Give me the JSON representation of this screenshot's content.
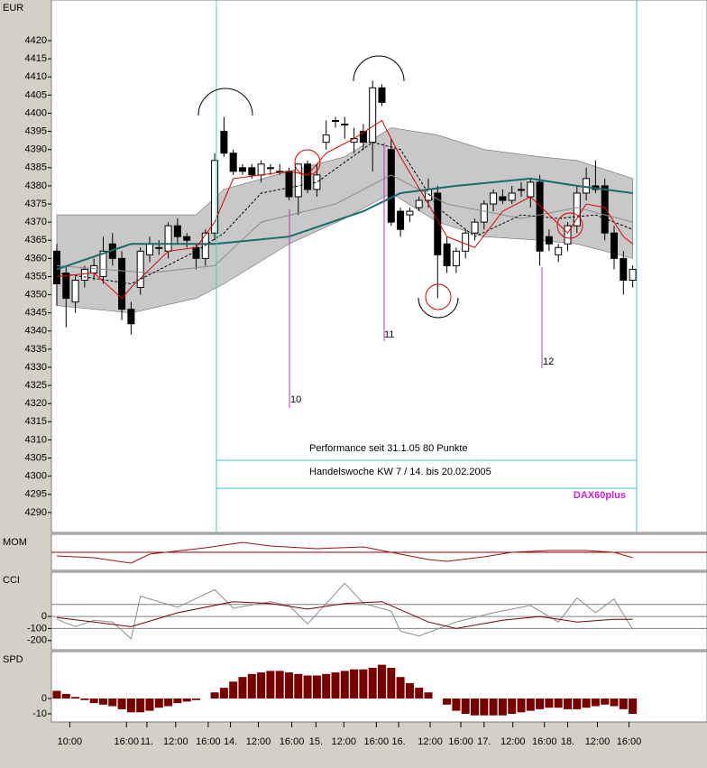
{
  "chart_data": [
    {
      "type": "candlestick",
      "title": "EUR",
      "xlim": [
        -0.58,
        70
      ],
      "ylim": [
        4284.5,
        4431.2
      ],
      "yticks": [
        4290,
        4295,
        4300,
        4305,
        4310,
        4315,
        4320,
        4325,
        4330,
        4335,
        4340,
        4345,
        4350,
        4355,
        4360,
        4365,
        4370,
        4375,
        4380,
        4385,
        4390,
        4395,
        4400,
        4405,
        4410,
        4415,
        4420
      ],
      "open": [
        4362,
        4356,
        4348,
        4354,
        4356,
        4355,
        4364,
        4360,
        4346,
        4352,
        4361,
        4363,
        4362,
        4369,
        4366,
        4363,
        4360,
        4367,
        4395,
        4389,
        4385,
        4385,
        4383,
        4385,
        4384,
        4384,
        4377,
        4386,
        4379,
        4392,
        4398,
        4397,
        4392,
        4395,
        4392,
        4407,
        4390,
        4373,
        4372,
        4374,
        4376,
        4378,
        4364,
        4358,
        4362,
        4367,
        4370,
        4375,
        4377,
        4376,
        4379,
        4377,
        4381,
        4366,
        4361,
        4364,
        4369,
        4378,
        4380,
        4380,
        4367,
        4360,
        4354
      ],
      "high": [
        4364,
        4358,
        4355,
        4358,
        4360,
        4366,
        4367,
        4362,
        4348,
        4363,
        4366,
        4365,
        4370,
        4371,
        4367,
        4364,
        4368,
        4389,
        4399,
        4390,
        4386,
        4386,
        4387,
        4386,
        4386,
        4385,
        4386,
        4387,
        4386,
        4398,
        4399,
        4399,
        4396,
        4397,
        4409,
        4408,
        4393,
        4374,
        4374,
        4377,
        4382,
        4380,
        4366,
        4363,
        4368,
        4371,
        4376,
        4379,
        4379,
        4380,
        4381,
        4382,
        4383,
        4368,
        4364,
        4370,
        4380,
        4385,
        4387,
        4382,
        4369,
        4362,
        4358
      ],
      "low": [
        4347,
        4341,
        4345,
        4352,
        4354,
        4353,
        4358,
        4343,
        4339,
        4350,
        4359,
        4361,
        4360,
        4364,
        4363,
        4357,
        4358,
        4365,
        4388,
        4383,
        4383,
        4382,
        4381,
        4383,
        4383,
        4376,
        4372,
        4378,
        4377,
        4390,
        4396,
        4393,
        4389,
        4390,
        4384,
        4402,
        4369,
        4366,
        4370,
        4373,
        4374,
        4349,
        4356,
        4356,
        4360,
        4365,
        4368,
        4373,
        4375,
        4375,
        4377,
        4374,
        4358,
        4362,
        4359,
        4362,
        4367,
        4376,
        4378,
        4365,
        4357,
        4350,
        4352
      ],
      "close": [
        4353,
        4349,
        4354,
        4357,
        4358,
        4362,
        4360,
        4346,
        4342,
        4362,
        4364,
        4363,
        4369,
        4366,
        4365,
        4360,
        4367,
        4387,
        4389,
        4384,
        4384,
        4383,
        4386,
        4385,
        4384,
        4377,
        4386,
        4379,
        4383,
        4394,
        4398,
        4397,
        4393,
        4392,
        4407,
        4403,
        4370,
        4368,
        4373,
        4376,
        4379,
        4361,
        4358,
        4362,
        4367,
        4370,
        4375,
        4378,
        4376,
        4378,
        4379,
        4381,
        4362,
        4364,
        4363,
        4369,
        4378,
        4382,
        4379,
        4367,
        4360,
        4354,
        4357
      ],
      "band": {
        "color": "#c8c8c8",
        "x": [
          0,
          8,
          15,
          18,
          25,
          31,
          36,
          41,
          46,
          52,
          56,
          62
        ],
        "upper": [
          4372,
          4372,
          4372,
          4379,
          4384,
          4388,
          4396,
          4394,
          4390,
          4388,
          4387,
          4382
        ],
        "lower": [
          4347,
          4345,
          4349,
          4353,
          4364,
          4371,
          4378,
          4370,
          4366,
          4365,
          4364,
          4360
        ]
      },
      "lines": [
        {
          "color": "#8c8c8c",
          "x": [
            0,
            10,
            17,
            22,
            30,
            36,
            42,
            50,
            56,
            62
          ],
          "values": [
            4358,
            4356,
            4358,
            4370,
            4375,
            4383,
            4375,
            4371,
            4374,
            4370
          ]
        },
        {
          "color": "#000000",
          "dash": true,
          "x": [
            0,
            8,
            15,
            18,
            22,
            28,
            34,
            37,
            41,
            45,
            50,
            54,
            58,
            62
          ],
          "values": [
            4356,
            4353,
            4362,
            4367,
            4378,
            4381,
            4392,
            4390,
            4374,
            4366,
            4372,
            4371,
            4372,
            4368
          ]
        },
        {
          "color": "#1a6b6b",
          "width": 2,
          "x": [
            0,
            8,
            17,
            25,
            33,
            37,
            43,
            51,
            56,
            62
          ],
          "values": [
            4357,
            4364,
            4364,
            4366,
            4373,
            4378,
            4380,
            4382,
            4380,
            4378
          ]
        },
        {
          "color": "#e00000",
          "x": [
            0,
            4,
            7,
            8,
            12,
            15,
            17,
            19,
            22,
            25,
            27,
            29,
            32,
            35,
            37,
            40,
            42,
            45,
            48,
            51,
            53,
            55,
            57,
            59,
            61,
            62
          ],
          "values": [
            4355,
            4356,
            4349,
            4352,
            4362,
            4363,
            4370,
            4382,
            4383,
            4384,
            4383,
            4389,
            4393,
            4398,
            4388,
            4375,
            4366,
            4363,
            4373,
            4377,
            4372,
            4367,
            4375,
            4374,
            4366,
            4364
          ]
        }
      ],
      "annotations": [
        "Performance seit 31.1.05  80 Punkte",
        "Handelswoche KW 7 / 14. bis 20.02.2005",
        "DAX60plus",
        "10",
        "11",
        "12"
      ]
    },
    {
      "type": "line",
      "title": "MOM",
      "xlim": [
        -0.58,
        70
      ],
      "ylim": [
        -20,
        20
      ],
      "levels": [
        0
      ],
      "level_color": "#8b0000",
      "series": [
        {
          "color": "#a01010",
          "x": [
            0,
            4,
            8,
            10,
            16,
            20,
            23,
            28,
            33,
            36,
            40,
            42,
            46,
            49,
            53,
            57,
            60,
            62
          ],
          "values": [
            -4,
            -6,
            -12,
            -2,
            5,
            11,
            7,
            4,
            6,
            0,
            -8,
            -10,
            -5,
            0,
            2,
            2,
            0,
            -6
          ]
        }
      ]
    },
    {
      "type": "line",
      "title": "CCI",
      "xlim": [
        -0.58,
        70
      ],
      "ylim": [
        -277,
        369
      ],
      "yticks": [
        0,
        -100,
        -200
      ],
      "levels": [
        100,
        0,
        -100
      ],
      "level_color": "#808080",
      "series": [
        {
          "color": "#8c8c8c",
          "x": [
            0,
            2,
            4,
            6,
            8,
            9,
            13,
            17,
            19,
            23,
            25,
            27,
            31,
            33,
            36,
            37,
            39,
            43,
            47,
            51,
            54,
            56,
            58,
            60,
            62
          ],
          "values": [
            -23,
            -85,
            -31,
            -46,
            -185,
            169,
            77,
            223,
            69,
            123,
            92,
            -62,
            277,
            108,
            46,
            -123,
            -162,
            -46,
            31,
            92,
            -46,
            154,
            31,
            146,
            -108
          ]
        },
        {
          "color": "#7a0000",
          "x": [
            0,
            4,
            8,
            13,
            19,
            23,
            27,
            31,
            35,
            40,
            43,
            48,
            52,
            56,
            60,
            62
          ],
          "values": [
            -8,
            -46,
            -85,
            31,
            123,
            108,
            62,
            108,
            123,
            -46,
            -100,
            -31,
            0,
            -46,
            -23,
            -23
          ]
        }
      ]
    },
    {
      "type": "bar",
      "title": "SPD",
      "xlim": [
        -0.58,
        70
      ],
      "ylim": [
        -15.3,
        30.6
      ],
      "yticks": [
        0,
        -10
      ],
      "color": "#7a0000",
      "values": [
        5,
        3,
        1,
        -1,
        -3,
        -4,
        -5,
        -7,
        -9,
        -9,
        -8,
        -6,
        -5,
        -3,
        -2,
        -1,
        0,
        4,
        7,
        11,
        14,
        16,
        17,
        18,
        18,
        17,
        16,
        15,
        15,
        16,
        17,
        18,
        19,
        19,
        20,
        22,
        20,
        14,
        10,
        7,
        4,
        0,
        -4,
        -8,
        -10,
        -11,
        -11,
        -11,
        -11,
        -10,
        -9,
        -8,
        -7,
        -6,
        -6,
        -7,
        -7,
        -6,
        -5,
        -4,
        -5,
        -7,
        -10
      ],
      "xticks": [
        {
          "value": 1.4,
          "label": "10:00"
        },
        {
          "value": 7.5,
          "label": "16:00"
        },
        {
          "value": 9.7,
          "label": "11."
        },
        {
          "value": 12.8,
          "label": "12:00"
        },
        {
          "value": 16.3,
          "label": "16:00"
        },
        {
          "value": 18.7,
          "label": "14."
        },
        {
          "value": 21.7,
          "label": "12:00"
        },
        {
          "value": 25.3,
          "label": "16:00"
        },
        {
          "value": 27.9,
          "label": "15."
        },
        {
          "value": 30.9,
          "label": "12:00"
        },
        {
          "value": 34.4,
          "label": "16:00"
        },
        {
          "value": 36.8,
          "label": "16."
        },
        {
          "value": 40.2,
          "label": "12:00"
        },
        {
          "value": 43.5,
          "label": "16:00"
        },
        {
          "value": 46,
          "label": "17."
        },
        {
          "value": 49.1,
          "label": "12:00"
        },
        {
          "value": 52.5,
          "label": "16:00"
        },
        {
          "value": 55,
          "label": "18."
        },
        {
          "value": 58.2,
          "label": "12:00"
        },
        {
          "value": 61.6,
          "label": "16:00"
        }
      ]
    }
  ]
}
